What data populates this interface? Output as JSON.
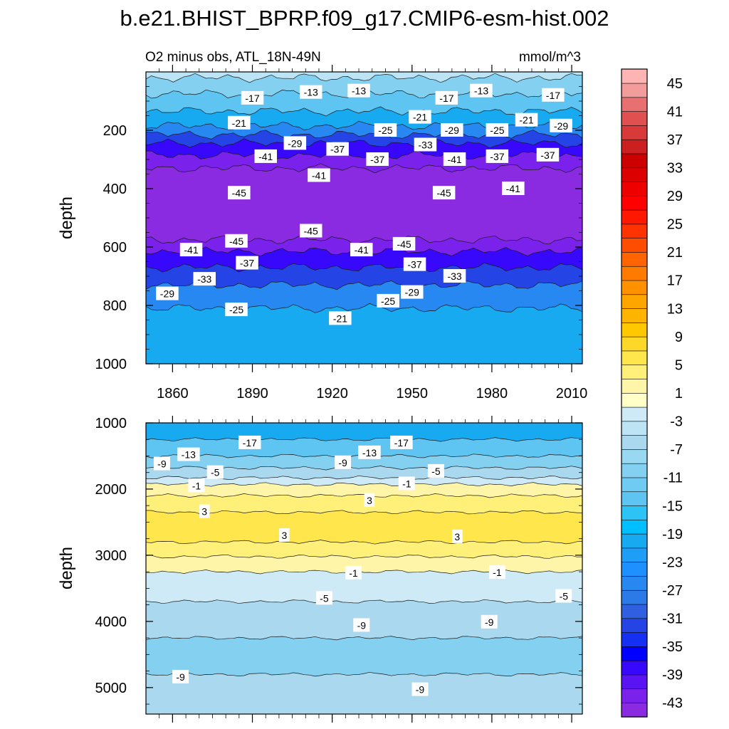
{
  "title": "b.e21.BHIST_BPRP.f09_g17.CMIP6-esm-hist.002",
  "chart_data": [
    {
      "type": "contour",
      "name": "upper-ocean-panel",
      "subtitle_left": "O2 minus obs, ATL_18N-49N",
      "subtitle_right": "mmol/m^3",
      "ylabel": "depth",
      "xlim": [
        1850,
        2014
      ],
      "ylim": [
        0,
        1000
      ],
      "y_reversed": true,
      "x_ticks": [
        "1860",
        "1890",
        "1920",
        "1950",
        "1980",
        "2010"
      ],
      "x_tick_values": [
        1860,
        1890,
        1920,
        1950,
        1980,
        2010
      ],
      "y_ticks": [
        "200",
        "400",
        "600",
        "800",
        "1000"
      ],
      "y_tick_values": [
        200,
        400,
        600,
        800,
        1000
      ],
      "bands": [
        {
          "from": 0,
          "to": 20,
          "value": -5
        },
        {
          "from": 20,
          "to": 75,
          "value": -11
        },
        {
          "from": 75,
          "to": 135,
          "value": -15
        },
        {
          "from": 135,
          "to": 185,
          "value": -21
        },
        {
          "from": 185,
          "to": 215,
          "value": -27
        },
        {
          "from": 215,
          "to": 245,
          "value": -33
        },
        {
          "from": 245,
          "to": 285,
          "value": -39
        },
        {
          "from": 285,
          "to": 330,
          "value": -43
        },
        {
          "from": 330,
          "to": 575,
          "value": -47
        },
        {
          "from": 575,
          "to": 615,
          "value": -43
        },
        {
          "from": 615,
          "to": 670,
          "value": -39
        },
        {
          "from": 670,
          "to": 730,
          "value": -33
        },
        {
          "from": 730,
          "to": 810,
          "value": -27
        },
        {
          "from": 810,
          "to": 1000,
          "value": -21
        }
      ],
      "contour_labels": [
        {
          "text": "-13",
          "x": 1912,
          "y": 70
        },
        {
          "text": "-13",
          "x": 1930,
          "y": 65
        },
        {
          "text": "-13",
          "x": 1976,
          "y": 65
        },
        {
          "text": "-17",
          "x": 1890,
          "y": 90
        },
        {
          "text": "-17",
          "x": 1963,
          "y": 90
        },
        {
          "text": "-17",
          "x": 2003,
          "y": 80
        },
        {
          "text": "-21",
          "x": 1885,
          "y": 175
        },
        {
          "text": "-21",
          "x": 1953,
          "y": 155
        },
        {
          "text": "-21",
          "x": 1993,
          "y": 165
        },
        {
          "text": "-25",
          "x": 1940,
          "y": 200
        },
        {
          "text": "-25",
          "x": 1982,
          "y": 200
        },
        {
          "text": "-29",
          "x": 1906,
          "y": 245
        },
        {
          "text": "-29",
          "x": 1965,
          "y": 200
        },
        {
          "text": "-29",
          "x": 2006,
          "y": 185
        },
        {
          "text": "-33",
          "x": 1955,
          "y": 250
        },
        {
          "text": "-37",
          "x": 1922,
          "y": 265
        },
        {
          "text": "-37",
          "x": 1937,
          "y": 300
        },
        {
          "text": "-37",
          "x": 1982,
          "y": 290
        },
        {
          "text": "-37",
          "x": 2001,
          "y": 285
        },
        {
          "text": "-41",
          "x": 1895,
          "y": 290
        },
        {
          "text": "-41",
          "x": 1915,
          "y": 355
        },
        {
          "text": "-41",
          "x": 1966,
          "y": 300
        },
        {
          "text": "-41",
          "x": 1988,
          "y": 400
        },
        {
          "text": "-45",
          "x": 1885,
          "y": 415
        },
        {
          "text": "-45",
          "x": 1962,
          "y": 415
        },
        {
          "text": "-45",
          "x": 1912,
          "y": 545
        },
        {
          "text": "-45",
          "x": 1884,
          "y": 580
        },
        {
          "text": "-45",
          "x": 1947,
          "y": 590
        },
        {
          "text": "-41",
          "x": 1867,
          "y": 610
        },
        {
          "text": "-41",
          "x": 1931,
          "y": 610
        },
        {
          "text": "-37",
          "x": 1888,
          "y": 655
        },
        {
          "text": "-37",
          "x": 1951,
          "y": 660
        },
        {
          "text": "-33",
          "x": 1872,
          "y": 710
        },
        {
          "text": "-33",
          "x": 1966,
          "y": 700
        },
        {
          "text": "-29",
          "x": 1858,
          "y": 760
        },
        {
          "text": "-29",
          "x": 1950,
          "y": 755
        },
        {
          "text": "-25",
          "x": 1884,
          "y": 815
        },
        {
          "text": "-25",
          "x": 1941,
          "y": 785
        },
        {
          "text": "-21",
          "x": 1923,
          "y": 845
        }
      ]
    },
    {
      "type": "contour",
      "name": "deep-ocean-panel",
      "ylabel": "depth",
      "xlim": [
        1850,
        2014
      ],
      "ylim": [
        1000,
        5400
      ],
      "y_reversed": true,
      "y_ticks": [
        "1000",
        "2000",
        "3000",
        "4000",
        "5000"
      ],
      "y_tick_values": [
        1000,
        2000,
        3000,
        4000,
        5000
      ],
      "bands": [
        {
          "from": 1000,
          "to": 1250,
          "value": -21
        },
        {
          "from": 1250,
          "to": 1500,
          "value": -15
        },
        {
          "from": 1500,
          "to": 1680,
          "value": -11
        },
        {
          "from": 1680,
          "to": 1830,
          "value": -7
        },
        {
          "from": 1830,
          "to": 1930,
          "value": -3
        },
        {
          "from": 1930,
          "to": 2100,
          "value": 1
        },
        {
          "from": 2100,
          "to": 2350,
          "value": 3
        },
        {
          "from": 2350,
          "to": 2800,
          "value": 5
        },
        {
          "from": 2800,
          "to": 3020,
          "value": 3
        },
        {
          "from": 3020,
          "to": 3250,
          "value": 1
        },
        {
          "from": 3250,
          "to": 3700,
          "value": -3
        },
        {
          "from": 3700,
          "to": 4250,
          "value": -7
        },
        {
          "from": 4250,
          "to": 4800,
          "value": -11
        },
        {
          "from": 4800,
          "to": 5400,
          "value": -7
        }
      ],
      "contour_labels": [
        {
          "text": "-17",
          "x": 1889,
          "y": 1300
        },
        {
          "text": "-17",
          "x": 1946,
          "y": 1300
        },
        {
          "text": "-13",
          "x": 1866,
          "y": 1480
        },
        {
          "text": "-13",
          "x": 1934,
          "y": 1450
        },
        {
          "text": "-9",
          "x": 1856,
          "y": 1620
        },
        {
          "text": "-9",
          "x": 1924,
          "y": 1600
        },
        {
          "text": "-5",
          "x": 1876,
          "y": 1750
        },
        {
          "text": "-5",
          "x": 1959,
          "y": 1730
        },
        {
          "text": "-1",
          "x": 1869,
          "y": 1950
        },
        {
          "text": "-1",
          "x": 1948,
          "y": 1920
        },
        {
          "text": "3",
          "x": 1872,
          "y": 2340
        },
        {
          "text": "3",
          "x": 1934,
          "y": 2170
        },
        {
          "text": "3",
          "x": 1902,
          "y": 2700
        },
        {
          "text": "3",
          "x": 1967,
          "y": 2720
        },
        {
          "text": "-1",
          "x": 1928,
          "y": 3270
        },
        {
          "text": "-1",
          "x": 1982,
          "y": 3260
        },
        {
          "text": "-5",
          "x": 1917,
          "y": 3650
        },
        {
          "text": "-5",
          "x": 2007,
          "y": 3620
        },
        {
          "text": "-9",
          "x": 1931,
          "y": 4060
        },
        {
          "text": "-9",
          "x": 1979,
          "y": 4010
        },
        {
          "text": "-9",
          "x": 1863,
          "y": 4840
        },
        {
          "text": "-9",
          "x": 1953,
          "y": 5030
        }
      ]
    },
    {
      "type": "colorbar",
      "name": "colorbar",
      "levels": [
        -45,
        -43,
        -41,
        -39,
        -37,
        -35,
        -33,
        -31,
        -29,
        -27,
        -25,
        -23,
        -21,
        -19,
        -17,
        -15,
        -13,
        -11,
        -9,
        -7,
        -5,
        -3,
        -1,
        1,
        3,
        5,
        7,
        9,
        11,
        13,
        15,
        17,
        19,
        21,
        23,
        25,
        27,
        29,
        31,
        33,
        35,
        37,
        39,
        41,
        43,
        45
      ],
      "tick_labels": [
        "-43",
        "-39",
        "-35",
        "-31",
        "-27",
        "-23",
        "-19",
        "-15",
        "-11",
        "-7",
        "-3",
        "1",
        "5",
        "9",
        "13",
        "17",
        "21",
        "25",
        "29",
        "33",
        "37",
        "41",
        "45"
      ],
      "colors": [
        "#8a2be2",
        "#7a22ec",
        "#5a14f4",
        "#3808fc",
        "#0000ff",
        "#1530f2",
        "#2544e6",
        "#3060e0",
        "#2c7ae8",
        "#2688f0",
        "#1e90ff",
        "#1e9ef6",
        "#18aaf0",
        "#00bfff",
        "#2cc4f4",
        "#5ec5f2",
        "#6fcbf2",
        "#84d0f0",
        "#98d8f0",
        "#aad8ee",
        "#bce4f4",
        "#cdeaf6",
        "#ffffc8",
        "#fff5a8",
        "#fff07a",
        "#fee64c",
        "#fdd828",
        "#ffc800",
        "#ffb400",
        "#ffa500",
        "#ff9100",
        "#ff7b00",
        "#ff6400",
        "#ff4d00",
        "#ff3300",
        "#ff1800",
        "#ff0000",
        "#ee0000",
        "#dd0000",
        "#cc0000",
        "#cc2020",
        "#d83a3a",
        "#e05050",
        "#e87070",
        "#f29c9c",
        "#ffb4b4"
      ]
    }
  ]
}
